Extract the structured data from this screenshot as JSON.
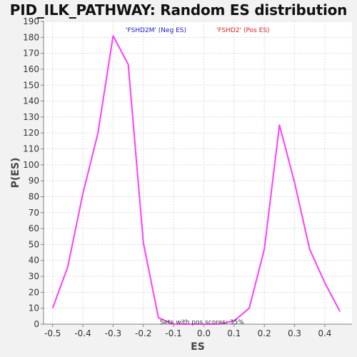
{
  "colors": {
    "background": "#f2f2f2",
    "plot_background": "#ffffff",
    "grid": "#d9d9d9",
    "axis": "#808080",
    "line": "#ff3cff",
    "neg_label": "#1a1acc",
    "pos_label": "#e0202a"
  },
  "chart_data": {
    "type": "line",
    "title": "PID_ILK_PATHWAY: Random ES distribution",
    "xlabel": "ES",
    "ylabel": "P(ES)",
    "xlim": [
      -0.53,
      0.49
    ],
    "ylim": [
      0,
      190
    ],
    "grid": true,
    "x_ticks": [
      -0.5,
      -0.4,
      -0.3,
      -0.2,
      -0.1,
      0.0,
      0.1,
      0.2,
      0.3,
      0.4
    ],
    "x_tick_labels": [
      "-0.5",
      "-0.4",
      "-0.3",
      "-0.2",
      "-0.1",
      "0.0",
      "0.1",
      "0.2",
      "0.3",
      "0.4"
    ],
    "y_ticks": [
      0,
      10,
      20,
      30,
      40,
      50,
      60,
      70,
      80,
      90,
      100,
      110,
      120,
      130,
      140,
      150,
      160,
      170,
      180,
      190
    ],
    "series": [
      {
        "x": [
          -0.5,
          -0.45,
          -0.4,
          -0.35,
          -0.3,
          -0.25,
          -0.2,
          -0.15,
          -0.1,
          -0.05,
          0.0,
          0.05,
          0.1,
          0.15,
          0.2,
          0.25,
          0.3,
          0.35,
          0.4,
          0.45
        ],
        "y": [
          10,
          36,
          82,
          120,
          181,
          163,
          51,
          4,
          0,
          0,
          0,
          0,
          2,
          10,
          47,
          125,
          89,
          47,
          26,
          8
        ]
      }
    ],
    "annotations": {
      "neg_label": "'FSHD2M' (Neg ES)",
      "pos_label": "'FSHD2' (Pos ES)",
      "pos_scores": "Sets with pos scores: 35%"
    }
  }
}
